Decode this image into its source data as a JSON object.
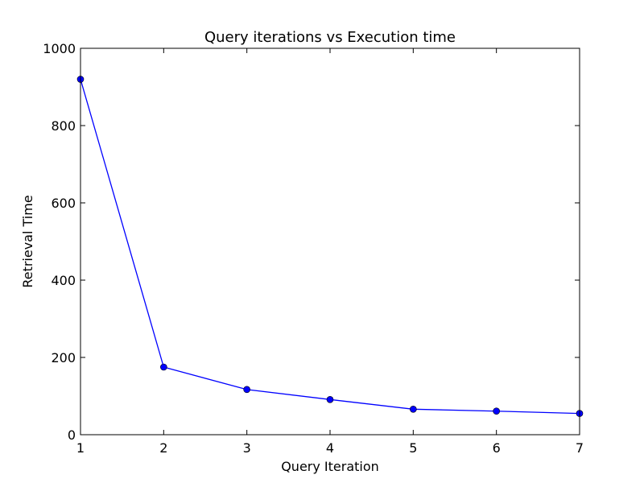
{
  "chart_data": {
    "type": "line",
    "title": "Query iterations vs Execution time",
    "xlabel": "Query Iteration",
    "ylabel": "Retrieval Time",
    "x": [
      1,
      2,
      3,
      4,
      5,
      6,
      7
    ],
    "series": [
      {
        "values": [
          920,
          175,
          117,
          91,
          66,
          61,
          55
        ],
        "color": "#0000ff",
        "marker": "circle"
      }
    ],
    "xlim": [
      1,
      7
    ],
    "ylim": [
      0,
      1000
    ],
    "xticks": [
      "1",
      "2",
      "3",
      "4",
      "5",
      "6",
      "7"
    ],
    "yticks": [
      "0",
      "200",
      "400",
      "600",
      "800",
      "1000"
    ],
    "grid": false,
    "legend": "none"
  }
}
